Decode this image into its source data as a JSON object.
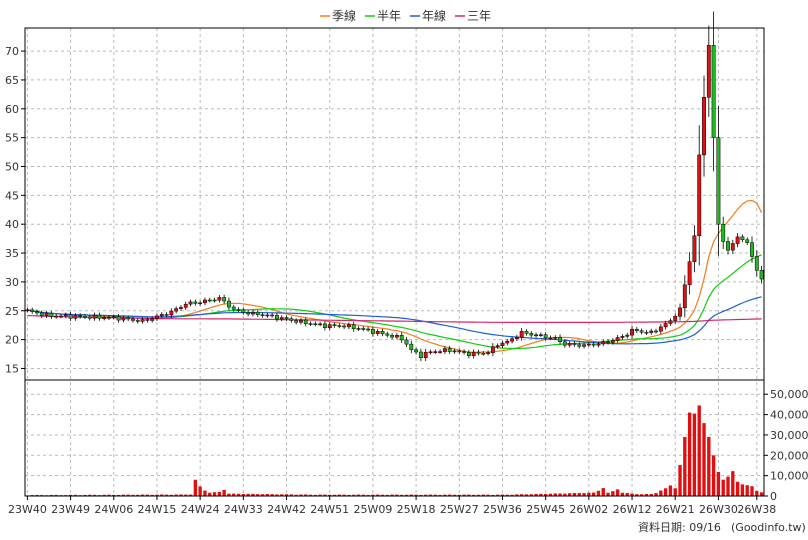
{
  "chart_data": {
    "type": "candlestick",
    "legend": [
      {
        "label": "季線",
        "color": "#f47c20"
      },
      {
        "label": "半年",
        "color": "#11cc11"
      },
      {
        "label": "年線",
        "color": "#1f5fd8"
      },
      {
        "label": "三年",
        "color": "#d6256b"
      }
    ],
    "price_axis": {
      "min": 13,
      "max": 74,
      "ticks": [
        15,
        20,
        25,
        30,
        35,
        40,
        45,
        50,
        55,
        60,
        65,
        70
      ]
    },
    "volume_axis": {
      "min": 0,
      "max": 57000,
      "ticks": [
        0,
        10000,
        20000,
        30000,
        40000,
        50000
      ],
      "tick_labels": [
        "0",
        "10,000",
        "20,000",
        "30,000",
        "40,000",
        "50,000"
      ]
    },
    "x_labels": [
      {
        "label": "23W40",
        "i": 0
      },
      {
        "label": "23W49",
        "i": 9
      },
      {
        "label": "24W06",
        "i": 18
      },
      {
        "label": "24W15",
        "i": 27
      },
      {
        "label": "24W24",
        "i": 36
      },
      {
        "label": "24W33",
        "i": 45
      },
      {
        "label": "24W42",
        "i": 54
      },
      {
        "label": "24W51",
        "i": 63
      },
      {
        "label": "25W09",
        "i": 72
      },
      {
        "label": "25W18",
        "i": 81
      },
      {
        "label": "25W27",
        "i": 90
      },
      {
        "label": "25W36",
        "i": 99
      },
      {
        "label": "25W45",
        "i": 108
      },
      {
        "label": "26W02",
        "i": 117
      },
      {
        "label": "26W12",
        "i": 126
      },
      {
        "label": "26W21",
        "i": 135
      },
      {
        "label": "26W30",
        "i": 144
      },
      {
        "label": "26W38",
        "i": 152
      }
    ],
    "price_keys": [
      [
        0,
        25
      ],
      [
        4,
        24.2
      ],
      [
        10,
        24
      ],
      [
        18,
        23.8
      ],
      [
        24,
        23.2
      ],
      [
        30,
        24.8
      ],
      [
        33,
        26.2
      ],
      [
        36,
        26.5
      ],
      [
        40,
        27.2
      ],
      [
        43,
        25.2
      ],
      [
        46,
        24.6
      ],
      [
        50,
        24.2
      ],
      [
        56,
        23.2
      ],
      [
        62,
        22.4
      ],
      [
        66,
        22.4
      ],
      [
        70,
        21.8
      ],
      [
        74,
        21
      ],
      [
        78,
        20.2
      ],
      [
        80,
        18.2
      ],
      [
        82,
        17.2
      ],
      [
        84,
        17.9
      ],
      [
        88,
        18.2
      ],
      [
        92,
        17.5
      ],
      [
        96,
        17.8
      ],
      [
        98,
        19.2
      ],
      [
        100,
        19.6
      ],
      [
        103,
        21.2
      ],
      [
        106,
        20.8
      ],
      [
        110,
        20.2
      ],
      [
        112,
        19.2
      ],
      [
        116,
        19
      ],
      [
        120,
        19.4
      ],
      [
        124,
        20.5
      ],
      [
        126,
        21.6
      ],
      [
        130,
        21.2
      ],
      [
        134,
        23.2
      ],
      [
        136,
        25.5
      ],
      [
        137,
        29.5
      ],
      [
        138,
        33.5
      ],
      [
        139,
        38
      ],
      [
        140,
        52
      ],
      [
        141,
        62
      ],
      [
        142,
        71
      ],
      [
        143,
        55
      ],
      [
        144,
        40
      ],
      [
        145,
        37
      ],
      [
        146,
        35.5
      ],
      [
        148,
        37.8
      ],
      [
        150,
        36.8
      ],
      [
        152,
        32
      ],
      [
        153,
        30.5
      ]
    ],
    "volume_keys": [
      [
        0,
        300
      ],
      [
        34,
        600
      ],
      [
        35,
        7800
      ],
      [
        36,
        4500
      ],
      [
        37,
        2600
      ],
      [
        38,
        1500
      ],
      [
        40,
        1800
      ],
      [
        41,
        3000
      ],
      [
        42,
        1000
      ],
      [
        60,
        500
      ],
      [
        100,
        500
      ],
      [
        118,
        1500
      ],
      [
        119,
        2500
      ],
      [
        120,
        3800
      ],
      [
        121,
        1400
      ],
      [
        122,
        2200
      ],
      [
        123,
        3200
      ],
      [
        124,
        1500
      ],
      [
        128,
        700
      ],
      [
        130,
        900
      ],
      [
        131,
        1400
      ],
      [
        132,
        2500
      ],
      [
        133,
        3600
      ],
      [
        134,
        5200
      ],
      [
        135,
        3800
      ],
      [
        136,
        15200
      ],
      [
        137,
        29000
      ],
      [
        138,
        41000
      ],
      [
        139,
        40500
      ],
      [
        140,
        44500
      ],
      [
        141,
        35800
      ],
      [
        142,
        29000
      ],
      [
        143,
        20000
      ],
      [
        144,
        11800
      ],
      [
        145,
        8000
      ],
      [
        146,
        9500
      ],
      [
        147,
        12200
      ],
      [
        148,
        7000
      ],
      [
        149,
        5700
      ],
      [
        150,
        5300
      ],
      [
        151,
        4800
      ],
      [
        152,
        2500
      ],
      [
        153,
        1800
      ]
    ],
    "ma_colors": {
      "q": "#f47c20",
      "h": "#11cc11",
      "y": "#1f5fd8",
      "t": "#d6256b"
    },
    "up_color": "#e01010",
    "down_color": "#22b822"
  },
  "footer": {
    "label": "資料日期: 09/16",
    "source": "(Goodinfo.tw)"
  }
}
